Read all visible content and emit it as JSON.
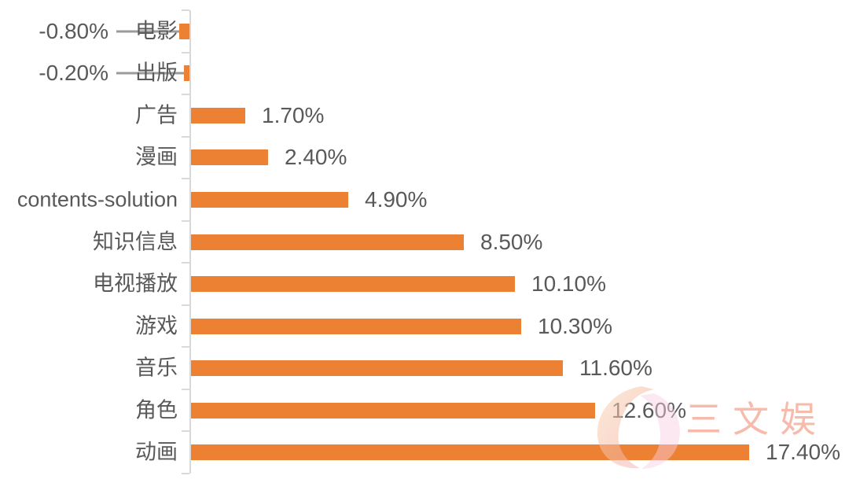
{
  "chart_data": {
    "type": "bar",
    "orientation": "horizontal",
    "categories": [
      "电影",
      "出版",
      "广告",
      "漫画",
      "contents-solution",
      "知识信息",
      "电视播放",
      "游戏",
      "音乐",
      "角色",
      "动画"
    ],
    "values": [
      -0.8,
      -0.2,
      1.7,
      2.4,
      4.9,
      8.5,
      10.1,
      10.3,
      11.6,
      12.6,
      17.4
    ],
    "labels": [
      "-0.80%",
      "-0.20%",
      "1.70%",
      "2.40%",
      "4.90%",
      "8.50%",
      "10.10%",
      "10.30%",
      "11.60%",
      "12.60%",
      "17.40%"
    ],
    "title": "",
    "xlabel": "",
    "ylabel": "",
    "xlim": [
      -1,
      18
    ],
    "grid": false,
    "legend": false,
    "value_label_position": "outside-end",
    "negative_label_position": "left-with-leader-line",
    "bar_color": "#ED8133",
    "label_color": "#595959",
    "axis_color": "#D9D9D9",
    "leader_line_color": "#9B9B9B"
  },
  "watermark": {
    "text": "三文娱",
    "text_color": "#F5AB97",
    "logo_peach_color": "#F8CBAD",
    "logo_pink_color": "#F6C3DA"
  }
}
